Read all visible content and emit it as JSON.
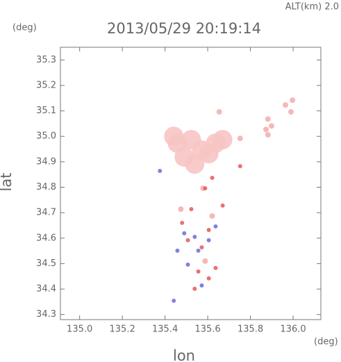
{
  "chart_data": {
    "type": "scatter",
    "title": "2013/05/29 20:19:14",
    "annotation": "ALT(km) 2.0",
    "y_unit": "(deg)",
    "x_unit": "(deg)",
    "xlabel": "lon",
    "ylabel": "lat",
    "xlim": [
      134.91,
      136.13
    ],
    "ylim": [
      34.28,
      35.35
    ],
    "xticks": [
      {
        "value": 135,
        "label": "135.0"
      },
      135.2,
      135.4,
      135.6,
      135.8,
      {
        "value": 136,
        "label": "136.0"
      }
    ],
    "yticks": [
      34.3,
      34.4,
      34.5,
      34.6,
      34.7,
      34.8,
      34.9,
      {
        "value": 35,
        "label": "35.0"
      },
      35.1,
      35.2,
      35.3
    ],
    "series": [
      {
        "color": "#f7c4c4",
        "marker_size": 14,
        "x": [
          135.458,
          135.523,
          135.572,
          135.49,
          135.539,
          135.441,
          135.637,
          135.67,
          135.605
        ],
        "y": [
          34.973,
          34.987,
          34.946,
          34.919,
          34.891,
          35.0,
          34.973,
          34.987,
          34.932
        ]
      },
      {
        "color": "#f4b0b0",
        "marker_size": 4,
        "x": [
          135.882,
          135.899,
          135.873,
          135.964,
          135.99,
          135.997,
          135.752,
          135.654,
          135.882,
          135.578,
          135.588,
          135.474,
          135.621
        ],
        "y": [
          35.068,
          35.041,
          35.027,
          35.123,
          35.096,
          35.142,
          34.992,
          35.096,
          35.006,
          34.796,
          34.51,
          34.714,
          34.687
        ]
      },
      {
        "color": "#e86060",
        "marker_size": 3,
        "x": [
          135.48,
          135.523,
          135.605,
          135.572,
          135.556,
          135.605,
          135.637,
          135.588,
          135.621,
          135.507,
          135.539,
          135.67,
          135.752
        ],
        "y": [
          34.66,
          34.714,
          34.632,
          34.564,
          34.469,
          34.442,
          34.483,
          34.796,
          34.837,
          34.592,
          34.401,
          34.728,
          34.883
        ]
      },
      {
        "color": "#7373e0",
        "marker_size": 3,
        "x": [
          135.49,
          135.539,
          135.605,
          135.507,
          135.637,
          135.458,
          135.441,
          135.572,
          135.376,
          135.556
        ],
        "y": [
          34.619,
          34.605,
          34.592,
          34.496,
          34.646,
          34.551,
          34.354,
          34.414,
          34.864,
          34.551
        ]
      }
    ]
  }
}
